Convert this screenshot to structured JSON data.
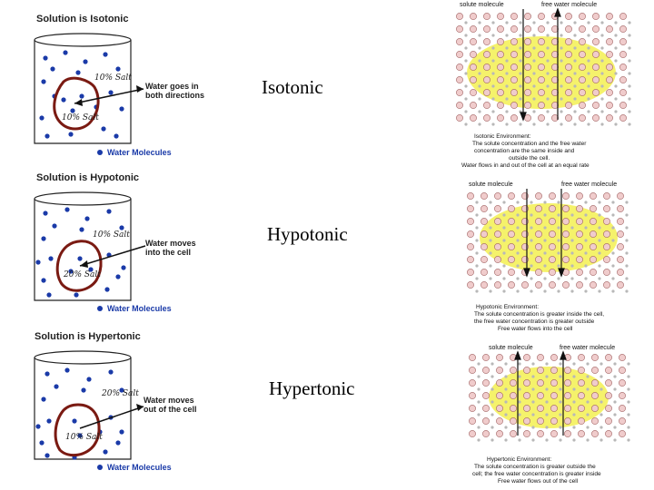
{
  "beakers": [
    {
      "title": "Solution is Isotonic",
      "outside_label": "10% Salt",
      "inside_label": "10% Salt",
      "arrow_line1": "Water goes in",
      "arrow_line2": "both directions",
      "legend": "Water Molecules",
      "arrow_direction": "both"
    },
    {
      "title": "Solution is Hypotonic",
      "outside_label": "10% Salt",
      "inside_label": "20% Salt",
      "arrow_line1": "Water moves",
      "arrow_line2": "into the cell",
      "legend": "Water Molecules",
      "arrow_direction": "in"
    },
    {
      "title": "Solution is Hypertonic",
      "outside_label": "20% Salt",
      "inside_label": "10% Salt",
      "arrow_line1": "Water moves",
      "arrow_line2": "out of the cell",
      "legend": "Water Molecules",
      "arrow_direction": "out"
    }
  ],
  "labels": [
    "Isotonic",
    "Hypotonic",
    "Hypertonic"
  ],
  "cells": [
    {
      "left_label": "solute molecule",
      "right_label": "free water molecule",
      "caption": [
        "Isotonic Environment:",
        "The solute concentration and the free water",
        "concentration are the same inside and",
        "outside the cell.",
        "Water flows in and out of the cell at an equal rate"
      ]
    },
    {
      "left_label": "solute molecule",
      "right_label": "free water molecule",
      "caption": [
        "Hypotonic Environment:",
        "The solute concentration is greater inside the cell,",
        "the free water concentration is greater outside",
        "Free water flows into the cell"
      ]
    },
    {
      "left_label": "solute molecule",
      "right_label": "free water molecule",
      "caption": [
        "Hypertonic Environment:",
        "The solute concentration is greater outside the",
        "cell; the free water concentration is greater inside",
        "Free water flows out of the cell"
      ]
    }
  ],
  "colors": {
    "water_dot": "#1a3aa8",
    "cell_outline": "#7a1a12",
    "cell_fill": "#f2ee3a",
    "solute": "#f0cccc",
    "free_water": "#b8b8b8"
  }
}
